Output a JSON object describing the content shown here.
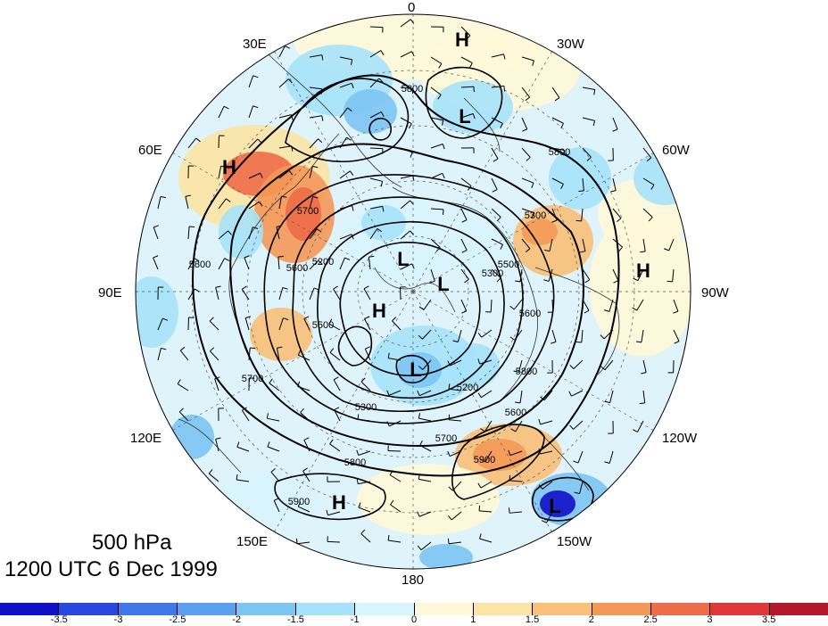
{
  "map": {
    "projection": "polar-stereographic-north",
    "center": "North Pole",
    "basemap": "coastlines and country borders",
    "field_shading": "standardized 500 hPa height anomaly",
    "contours": "500 hPa geopotential height (m)",
    "overlay": "wind barbs",
    "pressure_level": "500 hPa",
    "valid_time": "1200 UTC 6 Dec 1999",
    "longitude_labels": [
      {
        "id": "0",
        "text": "0"
      },
      {
        "id": "30W",
        "text": "30W"
      },
      {
        "id": "60W",
        "text": "60W"
      },
      {
        "id": "90W",
        "text": "90W"
      },
      {
        "id": "120W",
        "text": "120W"
      },
      {
        "id": "150W",
        "text": "150W"
      },
      {
        "id": "180",
        "text": "180"
      },
      {
        "id": "150E",
        "text": "150E"
      },
      {
        "id": "120E",
        "text": "120E"
      },
      {
        "id": "90E",
        "text": "90E"
      },
      {
        "id": "60E",
        "text": "60E"
      },
      {
        "id": "30E",
        "text": "30E"
      }
    ],
    "pressure_centers": [
      {
        "type": "H",
        "region": "North Atlantic near Greenland"
      },
      {
        "type": "L",
        "region": "Iceland"
      },
      {
        "type": "H",
        "region": "Western Russia"
      },
      {
        "type": "L",
        "region": "Arctic near Svalbard"
      },
      {
        "type": "L",
        "region": "Canadian Arctic"
      },
      {
        "type": "H",
        "region": "Arctic Ocean (Siberian side)"
      },
      {
        "type": "L",
        "region": "East Siberia"
      },
      {
        "type": "H",
        "region": "Eastern United States"
      },
      {
        "type": "H",
        "region": "North Pacific south of Aleutians"
      },
      {
        "type": "L",
        "region": "Gulf of Alaska / NE Pacific"
      }
    ],
    "contour_labels": [
      "5800",
      "5800",
      "5700",
      "5600",
      "5800",
      "5500",
      "5200",
      "5700",
      "5300",
      "5200",
      "5500",
      "5300",
      "5600",
      "5800",
      "5700",
      "5800",
      "5900",
      "5900",
      "5600",
      "5300"
    ]
  },
  "caption": {
    "line1": "500 hPa",
    "line2": "1200 UTC 6 Dec 1999"
  },
  "colorbar": {
    "colors": [
      "#1010c8",
      "#2848e0",
      "#4078e8",
      "#5aa0ee",
      "#7cc4f4",
      "#a6e2fa",
      "#d8f4fc",
      "#fff8d8",
      "#fbe4a4",
      "#f8c078",
      "#f49858",
      "#ee6c48",
      "#e03838",
      "#b4182c"
    ],
    "tick_labels": [
      "-3.5",
      "-3",
      "-2.5",
      "-2",
      "-1.5",
      "-1",
      "0",
      "1",
      "1.5",
      "2",
      "2.5",
      "3",
      "3.5"
    ]
  }
}
